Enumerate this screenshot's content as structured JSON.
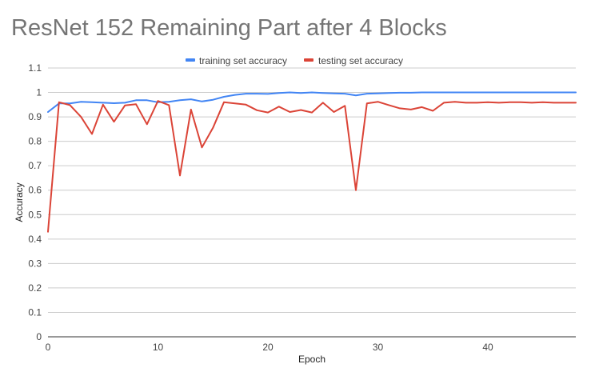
{
  "chart_data": {
    "type": "line",
    "title": "ResNet 152 Remaining Part after 4 Blocks",
    "xlabel": "Epoch",
    "ylabel": "Accuracy",
    "xlim": [
      0,
      48
    ],
    "ylim": [
      0,
      1.1
    ],
    "x_ticks": [
      0,
      10,
      20,
      30,
      40
    ],
    "x_tick_labels": [
      "0",
      "10",
      "20",
      "30",
      "40"
    ],
    "y_ticks": [
      0,
      0.1,
      0.2,
      0.3,
      0.4,
      0.5,
      0.6,
      0.7,
      0.8,
      0.9,
      1,
      1.1
    ],
    "y_tick_labels": [
      "0",
      "0.1",
      "0.2",
      "0.3",
      "0.4",
      "0.5",
      "0.6",
      "0.7",
      "0.8",
      "0.9",
      "1",
      "1.1"
    ],
    "grid": true,
    "legend_position": "top",
    "x": [
      0,
      1,
      2,
      3,
      4,
      5,
      6,
      7,
      8,
      9,
      10,
      11,
      12,
      13,
      14,
      15,
      16,
      17,
      18,
      19,
      20,
      21,
      22,
      23,
      24,
      25,
      26,
      27,
      28,
      29,
      30,
      31,
      32,
      33,
      34,
      35,
      36,
      37,
      38,
      39,
      40,
      41,
      42,
      43,
      44,
      45,
      46,
      47,
      48
    ],
    "series": [
      {
        "name": "training set accuracy",
        "color": "#4285f4",
        "values": [
          0.92,
          0.955,
          0.955,
          0.962,
          0.96,
          0.958,
          0.956,
          0.958,
          0.968,
          0.968,
          0.96,
          0.962,
          0.968,
          0.972,
          0.963,
          0.97,
          0.982,
          0.99,
          0.995,
          0.995,
          0.994,
          0.998,
          1.0,
          0.998,
          1.0,
          0.998,
          0.996,
          0.995,
          0.988,
          0.995,
          0.996,
          0.998,
          0.999,
          0.999,
          1.0,
          1.0,
          1.0,
          1.0,
          1.0,
          1.0,
          1.0,
          1.0,
          1.0,
          1.0,
          1.0,
          1.0,
          1.0,
          1.0,
          1.0
        ]
      },
      {
        "name": "testing set accuracy",
        "color": "#db4437",
        "values": [
          0.43,
          0.96,
          0.948,
          0.9,
          0.83,
          0.95,
          0.88,
          0.947,
          0.952,
          0.87,
          0.965,
          0.948,
          0.66,
          0.93,
          0.775,
          0.855,
          0.96,
          0.955,
          0.95,
          0.927,
          0.918,
          0.942,
          0.92,
          0.928,
          0.918,
          0.958,
          0.92,
          0.945,
          0.6,
          0.955,
          0.962,
          0.948,
          0.935,
          0.93,
          0.94,
          0.925,
          0.958,
          0.962,
          0.958,
          0.958,
          0.96,
          0.958,
          0.96,
          0.96,
          0.958,
          0.96,
          0.958,
          0.958,
          0.958
        ]
      }
    ]
  }
}
